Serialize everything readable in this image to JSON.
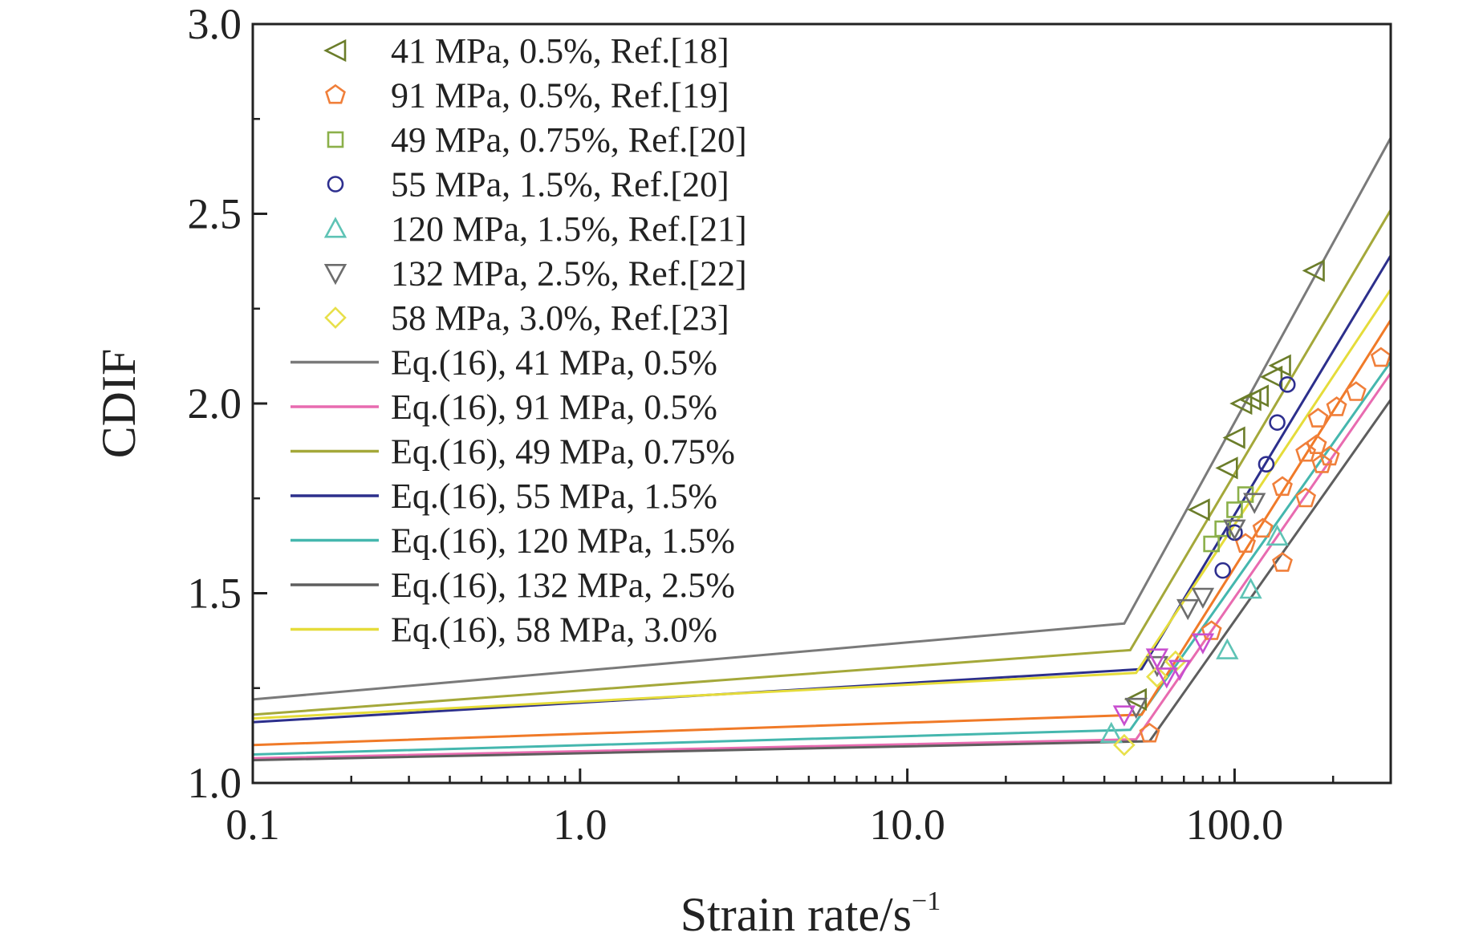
{
  "chart_data": {
    "type": "scatter",
    "xlabel": "Strain rate/s",
    "xlabel_sup": "−1",
    "ylabel": "CDIF",
    "xscale": "log",
    "xlim": [
      0.1,
      300
    ],
    "ylim": [
      1.0,
      3.0
    ],
    "xticks": [
      0.1,
      1,
      10,
      100
    ],
    "xtick_labels": [
      "0.1",
      "1.0",
      "10.0",
      "100.0"
    ],
    "yticks": [
      1.0,
      1.5,
      2.0,
      2.5,
      3.0
    ],
    "ytick_labels": [
      "1.0",
      "1.5",
      "2.0",
      "2.5",
      "3.0"
    ],
    "legend_position": "top-left",
    "grid": false,
    "series": [
      {
        "name": "41 MPa, 0.5%, Ref.[18]",
        "marker": "triangle-left",
        "color": "#6b7d2a",
        "points": [
          [
            50,
            1.22
          ],
          [
            78,
            1.72
          ],
          [
            95,
            1.83
          ],
          [
            100,
            1.91
          ],
          [
            105,
            2.0
          ],
          [
            112,
            2.01
          ],
          [
            118,
            2.02
          ],
          [
            130,
            2.07
          ],
          [
            138,
            2.1
          ],
          [
            175,
            2.35
          ]
        ]
      },
      {
        "name": "91 MPa, 0.5%, Ref.[19]",
        "marker": "pentagon",
        "color": "#f07f3a",
        "points": [
          [
            55,
            1.13
          ],
          [
            85,
            1.4
          ],
          [
            108,
            1.63
          ],
          [
            122,
            1.67
          ],
          [
            140,
            1.78
          ],
          [
            140,
            1.58
          ],
          [
            165,
            1.75
          ],
          [
            165,
            1.87
          ],
          [
            178,
            1.89
          ],
          [
            185,
            1.84
          ],
          [
            195,
            1.86
          ],
          [
            180,
            1.96
          ],
          [
            205,
            1.99
          ],
          [
            235,
            2.03
          ],
          [
            280,
            2.12
          ]
        ]
      },
      {
        "name": "49 MPa, 0.75%, Ref.[20]",
        "marker": "square",
        "color": "#8bb04a",
        "points": [
          [
            85,
            1.63
          ],
          [
            92,
            1.67
          ],
          [
            100,
            1.72
          ],
          [
            108,
            1.76
          ]
        ]
      },
      {
        "name": "55 MPa, 1.5%, Ref.[20]",
        "marker": "circle",
        "color": "#2e2f8f",
        "points": [
          [
            92,
            1.56
          ],
          [
            100,
            1.66
          ],
          [
            125,
            1.84
          ],
          [
            135,
            1.95
          ],
          [
            145,
            2.05
          ]
        ]
      },
      {
        "name": "120 MPa, 1.5%, Ref.[21]",
        "marker": "triangle-up",
        "color": "#5ec3b5",
        "points": [
          [
            42,
            1.13
          ],
          [
            95,
            1.35
          ],
          [
            112,
            1.51
          ],
          [
            135,
            1.65
          ]
        ]
      },
      {
        "name": "132 MPa, 2.5%, Ref.[22]",
        "marker": "triangle-down",
        "color": "#6d6d6d",
        "points": [
          [
            50,
            1.2
          ],
          [
            58,
            1.31
          ],
          [
            72,
            1.46
          ],
          [
            80,
            1.49
          ],
          [
            100,
            1.67
          ],
          [
            115,
            1.74
          ]
        ]
      },
      {
        "name": "58 MPa, 3.0%, Ref.[23]",
        "marker": "diamond",
        "color": "#e8e04a",
        "points": [
          [
            46,
            1.1
          ],
          [
            58,
            1.28
          ],
          [
            66,
            1.32
          ]
        ]
      },
      {
        "name": "",
        "marker": "triangle-down",
        "color": "#c84fcf",
        "points": [
          [
            46,
            1.18
          ],
          [
            62,
            1.28
          ],
          [
            68,
            1.3
          ],
          [
            80,
            1.37
          ],
          [
            58,
            1.33
          ]
        ]
      }
    ],
    "curves": [
      {
        "name": "Eq.(16), 41 MPa, 0.5%",
        "color": "#7a7a7a",
        "points": [
          [
            0.1,
            1.22
          ],
          [
            46,
            1.42
          ],
          [
            300,
            2.7
          ]
        ]
      },
      {
        "name": "Eq.(16), 91 MPa, 0.5%",
        "color": "#e86bb0",
        "points": [
          [
            0.1,
            1.065
          ],
          [
            50,
            1.115
          ],
          [
            300,
            2.08
          ]
        ]
      },
      {
        "name": "Eq.(16), 49 MPa, 0.75%",
        "color": "#a4a83a",
        "points": [
          [
            0.1,
            1.18
          ],
          [
            48,
            1.35
          ],
          [
            300,
            2.51
          ]
        ]
      },
      {
        "name": "Eq.(16), 55 MPa, 1.5%",
        "color": "#2c2f8c",
        "points": [
          [
            0.1,
            1.16
          ],
          [
            52,
            1.3
          ],
          [
            300,
            2.39
          ]
        ]
      },
      {
        "name": "Eq.(16), 120 MPa, 1.5%",
        "color": "#45b7ae",
        "points": [
          [
            0.1,
            1.075
          ],
          [
            48,
            1.14
          ],
          [
            300,
            2.11
          ]
        ]
      },
      {
        "name": "Eq.(16), 132 MPa, 2.5%",
        "color": "#5e5e5e",
        "points": [
          [
            0.1,
            1.06
          ],
          [
            55,
            1.11
          ],
          [
            300,
            2.01
          ]
        ]
      },
      {
        "name": "Eq.(16), 58 MPa, 3.0%",
        "color": "#e5dc3a",
        "points": [
          [
            0.1,
            1.17
          ],
          [
            50,
            1.29
          ],
          [
            300,
            2.3
          ]
        ]
      },
      {
        "name": "",
        "color": "#f07a28",
        "points": [
          [
            0.1,
            1.1
          ],
          [
            52,
            1.18
          ],
          [
            300,
            2.22
          ]
        ]
      }
    ]
  }
}
